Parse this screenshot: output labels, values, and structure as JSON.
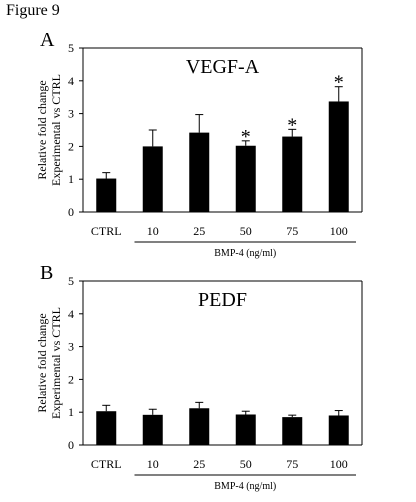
{
  "figure_title": "Figure 9",
  "chart_data": [
    {
      "type": "bar",
      "panel_label": "A",
      "title": "VEGF-A",
      "ylabel_lines": [
        "Relative fold change",
        "Experimental vs CTRL"
      ],
      "xlabel": "BMP-4 (ng/ml)",
      "categories": [
        "CTRL",
        "10",
        "25",
        "50",
        "75",
        "100"
      ],
      "values": [
        1.02,
        2.0,
        2.42,
        2.02,
        2.3,
        3.37
      ],
      "errors": [
        0.18,
        0.5,
        0.55,
        0.15,
        0.22,
        0.45
      ],
      "significant": [
        false,
        false,
        false,
        true,
        true,
        true
      ],
      "significance_marker": "*",
      "ylim": [
        0,
        5
      ],
      "yticks": [
        "0",
        "1",
        "2",
        "3",
        "4",
        "5"
      ],
      "grid": false,
      "bar_color": "#000000"
    },
    {
      "type": "bar",
      "panel_label": "B",
      "title": "PEDF",
      "ylabel_lines": [
        "Relative fold change",
        "Experimental vs CTRL"
      ],
      "xlabel": "BMP-4 (ng/ml)",
      "categories": [
        "CTRL",
        "10",
        "25",
        "50",
        "75",
        "100"
      ],
      "values": [
        1.03,
        0.92,
        1.12,
        0.93,
        0.85,
        0.9
      ],
      "errors": [
        0.18,
        0.17,
        0.18,
        0.1,
        0.06,
        0.15
      ],
      "significant": [
        false,
        false,
        false,
        false,
        false,
        false
      ],
      "significance_marker": "*",
      "ylim": [
        0,
        5
      ],
      "yticks": [
        "0",
        "1",
        "2",
        "3",
        "4",
        "5"
      ],
      "grid": false,
      "bar_color": "#000000"
    }
  ]
}
